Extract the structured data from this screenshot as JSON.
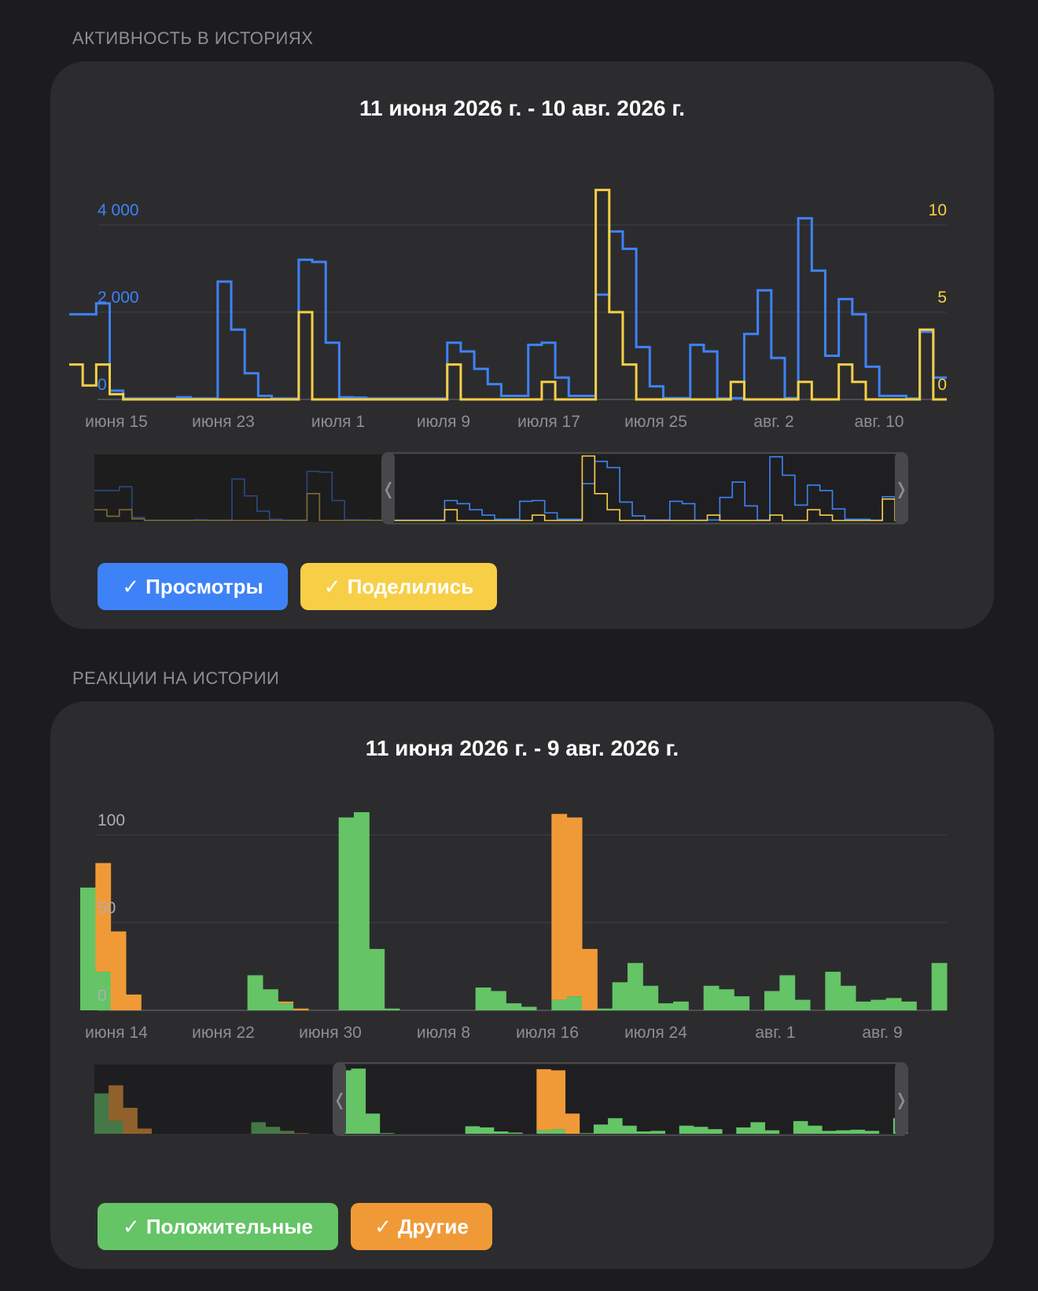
{
  "section1": {
    "title": "АКТИВНОСТЬ В ИСТОРИЯХ"
  },
  "section2": {
    "title": "РЕАКЦИИ НА ИСТОРИИ"
  },
  "colors": {
    "views": "#3e82f7",
    "shares": "#f7cf46",
    "positive": "#64c466",
    "other": "#f09a37",
    "card": "#2c2c2e",
    "background": "#1c1c1e"
  },
  "icons": {
    "check": "✓",
    "left_handle": "❬",
    "right_handle": "❭"
  },
  "chart_data": [
    {
      "type": "line",
      "step": true,
      "title": "11 июня 2026 г. - 10 авг. 2026 г.",
      "x_start": "2026-06-11",
      "x_end": "2026-08-10",
      "x_tick_labels": [
        "июня 15",
        "июня 23",
        "июля 1",
        "июля 9",
        "июля 17",
        "июля 25",
        "авг. 2",
        "авг. 10"
      ],
      "y_left": {
        "ticks": [
          0,
          2000,
          4000
        ],
        "tick_labels": [
          "0",
          "2 000",
          "4 000"
        ],
        "range": [
          0,
          4000
        ]
      },
      "y_right": {
        "ticks": [
          0,
          5,
          10
        ],
        "tick_labels": [
          "0",
          "5",
          "10"
        ],
        "range": [
          0,
          10
        ]
      },
      "grid": true,
      "series": [
        {
          "name": "Просмотры",
          "axis": "left",
          "values": [
            1950,
            1950,
            2200,
            200,
            20,
            20,
            20,
            20,
            50,
            20,
            20,
            2700,
            1600,
            600,
            80,
            20,
            20,
            3200,
            3150,
            1300,
            50,
            40,
            20,
            20,
            20,
            20,
            20,
            20,
            1300,
            1100,
            700,
            350,
            80,
            80,
            1250,
            1300,
            500,
            80,
            80,
            2400,
            3850,
            3450,
            1200,
            300,
            30,
            30,
            1250,
            1100,
            20,
            30,
            1500,
            2500,
            950,
            30,
            4150,
            2950,
            1000,
            2300,
            1950,
            750,
            80,
            80,
            20,
            1550,
            500
          ]
        },
        {
          "name": "Поделились",
          "axis": "right",
          "values": [
            2,
            0.8,
            2,
            0.3,
            0,
            0,
            0,
            0,
            0,
            0,
            0,
            0,
            0,
            0,
            0,
            0,
            0,
            5,
            0,
            0,
            0,
            0,
            0,
            0,
            0,
            0,
            0,
            0,
            2,
            0,
            0,
            0,
            0,
            0,
            0,
            1,
            0,
            0,
            0,
            12,
            5,
            2,
            0,
            0,
            0,
            0,
            0,
            0,
            0,
            1,
            0,
            0,
            0,
            0,
            1,
            0,
            0,
            2,
            1,
            0,
            0,
            0,
            0,
            4,
            0
          ]
        }
      ],
      "legend": [
        "Просмотры",
        "Поделились"
      ]
    },
    {
      "type": "bar",
      "stacked": true,
      "title": "11 июня 2026 г. - 9 авг. 2026 г.",
      "x_start": "2026-06-11",
      "x_end": "2026-08-09",
      "x_tick_labels": [
        "июня 14",
        "июня 22",
        "июня 30",
        "июля 8",
        "июля 16",
        "июля 24",
        "авг. 1",
        "авг. 9"
      ],
      "y": {
        "ticks": [
          0,
          50,
          100
        ],
        "tick_labels": [
          "0",
          "50",
          "100"
        ],
        "range": [
          0,
          100
        ]
      },
      "grid": true,
      "series": [
        {
          "name": "Положительные",
          "values": [
            70,
            22,
            0,
            0,
            0,
            0,
            0,
            0,
            0,
            0,
            0,
            20,
            12,
            4,
            0,
            0,
            0,
            110,
            113,
            35,
            1,
            0,
            0,
            0,
            0,
            0,
            13,
            11,
            4,
            2,
            0,
            6,
            8,
            0,
            1,
            16,
            27,
            14,
            4,
            5,
            0,
            14,
            12,
            8,
            0,
            11,
            20,
            6,
            0,
            22,
            14,
            5,
            6,
            7,
            5,
            0,
            27
          ]
        },
        {
          "name": "Другие",
          "values": [
            0,
            62,
            45,
            9,
            0,
            0,
            0,
            0,
            0,
            0,
            0,
            0,
            0,
            1,
            1,
            0,
            0,
            0,
            0,
            0,
            0,
            0,
            0,
            0,
            0,
            0,
            0,
            0,
            0,
            0,
            0,
            106,
            102,
            35,
            0,
            0,
            0,
            0,
            0,
            0,
            0,
            0,
            0,
            0,
            0,
            0,
            0,
            0,
            0,
            0,
            0,
            0,
            0,
            0,
            0,
            0,
            0
          ]
        }
      ],
      "legend": [
        "Положительные",
        "Другие"
      ]
    }
  ]
}
